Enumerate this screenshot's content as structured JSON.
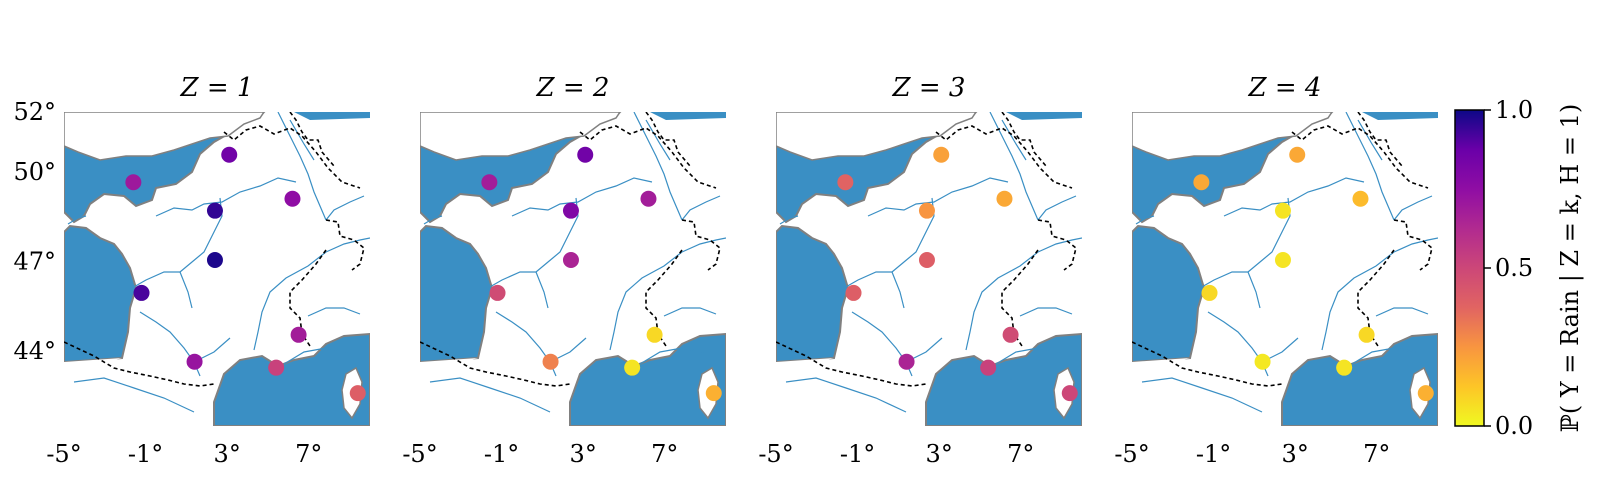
{
  "chart_data": {
    "type": "scatter",
    "map_region": "France",
    "x_ticks": [
      "-5°",
      "-1°",
      "3°",
      "7°"
    ],
    "y_ticks": [
      "52°",
      "50°",
      "47°",
      "44°"
    ],
    "xlim": [
      -5,
      10
    ],
    "ylim": [
      41.5,
      52
    ],
    "colorbar": {
      "label": "ℙ( Y = Rain | Z = k, H = 1)",
      "ticks": [
        "1.0",
        "0.5",
        "0.0"
      ],
      "range": [
        0,
        1
      ],
      "colormap": "plasma"
    },
    "stations": [
      {
        "lon": -1.6,
        "lat": 49.65
      },
      {
        "lon": 3.1,
        "lat": 50.57
      },
      {
        "lon": 6.2,
        "lat": 49.1
      },
      {
        "lon": 2.4,
        "lat": 48.7
      },
      {
        "lon": 2.4,
        "lat": 47.05
      },
      {
        "lon": -1.2,
        "lat": 45.95
      },
      {
        "lon": 1.4,
        "lat": 43.65
      },
      {
        "lon": 5.4,
        "lat": 43.45
      },
      {
        "lon": 6.5,
        "lat": 44.55
      },
      {
        "lon": 9.4,
        "lat": 42.6
      }
    ],
    "panels": [
      {
        "title": "Z = 1",
        "values": [
          0.7,
          0.85,
          0.75,
          0.95,
          0.98,
          0.92,
          0.72,
          0.52,
          0.68,
          0.4
        ]
      },
      {
        "title": "Z = 2",
        "values": [
          0.68,
          0.85,
          0.68,
          0.8,
          0.65,
          0.48,
          0.3,
          0.05,
          0.08,
          0.18
        ]
      },
      {
        "title": "Z = 3",
        "values": [
          0.38,
          0.22,
          0.2,
          0.25,
          0.4,
          0.4,
          0.65,
          0.52,
          0.48,
          0.5
        ]
      },
      {
        "title": "Z = 4",
        "values": [
          0.2,
          0.2,
          0.15,
          0.05,
          0.05,
          0.08,
          0.04,
          0.05,
          0.08,
          0.18
        ]
      }
    ],
    "colors": {
      "sea": "#3a8fc4",
      "coast": "#808080",
      "river": "#3a8fc4",
      "border": "#000000"
    }
  }
}
